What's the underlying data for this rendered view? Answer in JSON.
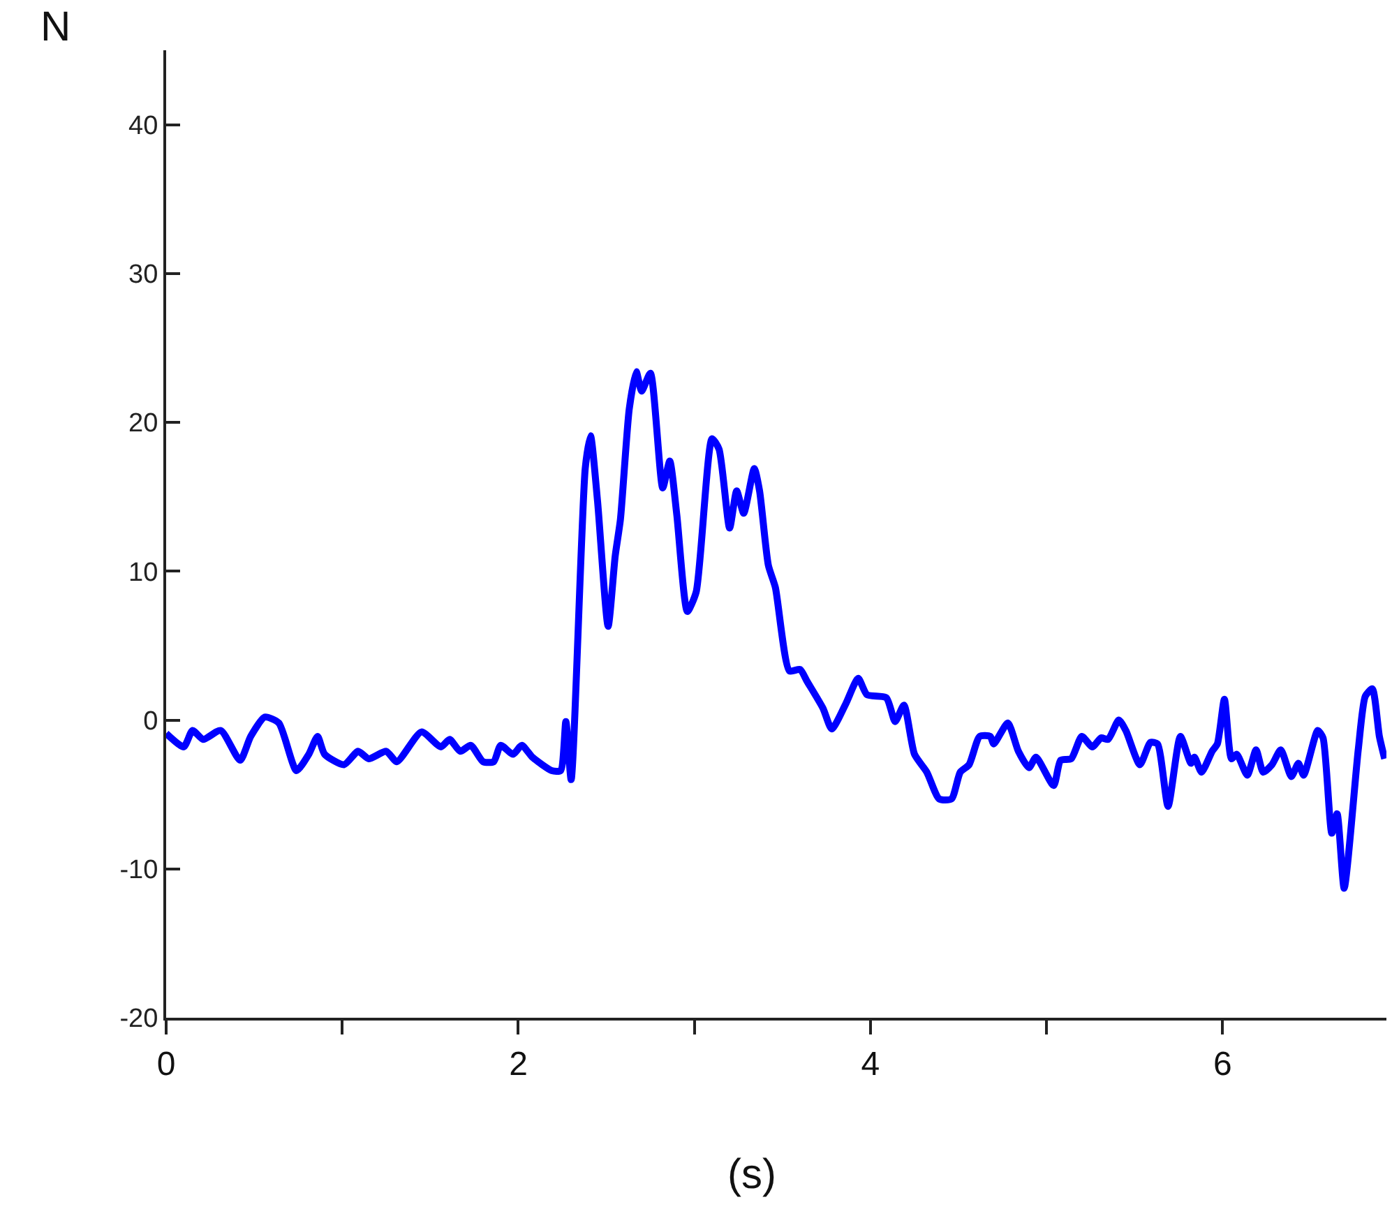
{
  "chart_data": {
    "type": "line",
    "xlabel": "(s)",
    "ylabel": "N",
    "x": [
      0,
      0.1,
      0.15,
      0.21,
      0.31,
      0.42,
      0.48,
      0.56,
      0.64,
      0.74,
      0.81,
      0.86,
      0.9,
      1.01,
      1.09,
      1.15,
      1.25,
      1.31,
      1.45,
      1.56,
      1.61,
      1.67,
      1.73,
      1.8,
      1.86,
      1.9,
      1.97,
      2.02,
      2.08,
      2.19,
      2.24,
      2.27,
      2.3,
      2.38,
      2.41,
      2.45,
      2.51,
      2.55,
      2.58,
      2.63,
      2.67,
      2.7,
      2.75,
      2.82,
      2.86,
      2.9,
      2.96,
      3.01,
      3.1,
      3.14,
      3.2,
      3.24,
      3.28,
      3.34,
      3.37,
      3.42,
      3.46,
      3.54,
      3.6,
      3.64,
      3.73,
      3.78,
      3.86,
      3.93,
      3.98,
      4.09,
      4.14,
      4.19,
      4.25,
      4.32,
      4.39,
      4.46,
      4.51,
      4.56,
      4.62,
      4.68,
      4.7,
      4.78,
      4.84,
      4.9,
      4.94,
      5.04,
      5.08,
      5.14,
      5.2,
      5.26,
      5.31,
      5.35,
      5.41,
      5.45,
      5.53,
      5.59,
      5.63,
      5.69,
      5.76,
      5.82,
      5.84,
      5.88,
      5.94,
      5.97,
      6.01,
      6.05,
      6.08,
      6.14,
      6.19,
      6.23,
      6.28,
      6.33,
      6.39,
      6.43,
      6.46,
      6.54,
      6.57,
      6.62,
      6.65,
      6.69,
      6.77,
      6.81,
      6.85,
      6.89,
      6.92
    ],
    "series": [
      {
        "color": "#0000ff",
        "values": [
          -0.9,
          -1.8,
          -0.7,
          -1.3,
          -0.7,
          -2.7,
          -1.1,
          0.2,
          -0.2,
          -3.4,
          -2.3,
          -1.1,
          -2.3,
          -3.0,
          -2.1,
          -2.6,
          -2.1,
          -2.8,
          -0.8,
          -1.8,
          -1.3,
          -2.1,
          -1.7,
          -2.8,
          -2.8,
          -1.7,
          -2.3,
          -1.7,
          -2.5,
          -3.4,
          -3.4,
          -0.1,
          -4.0,
          16.9,
          19.1,
          14.7,
          6.3,
          11.0,
          13.5,
          20.9,
          23.4,
          22.1,
          23.3,
          15.6,
          17.4,
          13.8,
          7.3,
          8.6,
          18.9,
          18.2,
          12.9,
          15.4,
          13.9,
          16.9,
          15.4,
          10.4,
          8.9,
          3.3,
          3.4,
          2.6,
          0.8,
          -0.6,
          1.1,
          2.8,
          1.7,
          1.5,
          -0.1,
          1.0,
          -2.3,
          -3.5,
          -5.3,
          -5.3,
          -3.5,
          -3.0,
          -1.1,
          -1.1,
          -1.6,
          -0.2,
          -2.1,
          -3.2,
          -2.5,
          -4.4,
          -2.7,
          -2.6,
          -1.1,
          -1.8,
          -1.2,
          -1.3,
          0.0,
          -0.7,
          -3.0,
          -1.5,
          -1.6,
          -5.8,
          -1.1,
          -2.9,
          -2.5,
          -3.5,
          -2.1,
          -1.6,
          1.4,
          -2.6,
          -2.3,
          -3.7,
          -2.0,
          -3.5,
          -3.0,
          -2.0,
          -3.8,
          -2.9,
          -3.7,
          -0.7,
          -1.2,
          -7.6,
          -6.3,
          -11.3,
          -2.0,
          1.6,
          2.1,
          -1.1,
          -2.6
        ]
      }
    ],
    "xlim": [
      0,
      6.93
    ],
    "ylim": [
      -20,
      45
    ],
    "xticks": [
      0,
      {
        "value": 1,
        "label": null
      },
      2,
      {
        "value": 3,
        "label": null
      },
      4,
      {
        "value": 5,
        "label": null
      },
      6
    ],
    "yticks": [
      -20,
      -10,
      0,
      10,
      20,
      30,
      40
    ],
    "marker": "none",
    "line_style": "solid"
  }
}
